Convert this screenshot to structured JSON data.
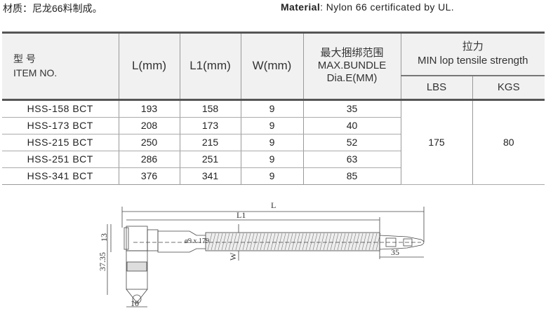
{
  "material_cn": "材质：尼龙66料制成。",
  "material_en": {
    "label": "Material",
    "text": ": Nylon 66 certificated  by  UL."
  },
  "table": {
    "headers": {
      "item_cn": "型 号",
      "item_en": "ITEM  NO.",
      "L": "L(mm)",
      "L1": "L1(mm)",
      "W": "W(mm)",
      "bundle_cn": "最大捆绑范围",
      "bundle_en1": "MAX.BUNDLE",
      "bundle_en2": "Dia.E(MM)",
      "tensile_cn": "拉力",
      "tensile_en": "MIN lop tensile strength",
      "lbs": "LBS",
      "kgs": "KGS"
    },
    "rows": [
      {
        "item": "HSS-158  BCT",
        "L": "193",
        "L1": "158",
        "W": "9",
        "E": "35"
      },
      {
        "item": "HSS-173  BCT",
        "L": "208",
        "L1": "173",
        "W": "9",
        "E": "40"
      },
      {
        "item": "HSS-215  BCT",
        "L": "250",
        "L1": "215",
        "W": "9",
        "E": "52"
      },
      {
        "item": "HSS-251  BCT",
        "L": "286",
        "L1": "251",
        "W": "9",
        "E": "63"
      },
      {
        "item": "HSS-341  BCT",
        "L": "376",
        "L1": "341",
        "W": "9",
        "E": "85"
      }
    ],
    "lbs": "175",
    "kgs": "80"
  },
  "drawing": {
    "L": "L",
    "L1": "L1",
    "W": "W",
    "d13": "13",
    "d3735": "37.35",
    "d10": "10",
    "d35": "35",
    "hole": "ø9 x 179"
  }
}
